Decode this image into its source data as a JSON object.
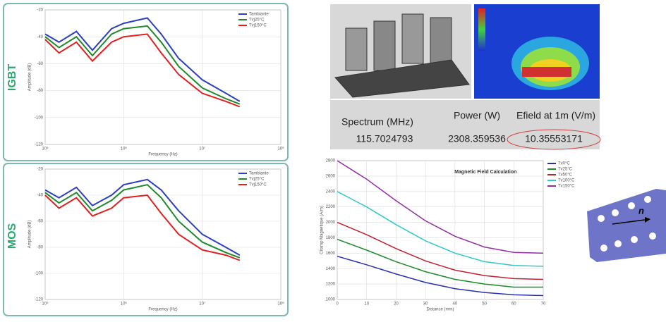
{
  "chart_data": [
    {
      "type": "line",
      "panel_label": "IGBT",
      "xlog": true,
      "xlabel": "Frequency (Hz)",
      "ylabel": "Amplitude (dB)",
      "grid": true,
      "legend": "upper right",
      "x": [
        100000,
        150000,
        250000,
        400000,
        700000,
        1000000,
        2000000,
        3000000,
        5000000,
        10000000,
        20000000,
        30000000
      ],
      "xlim": [
        100000,
        100000000
      ],
      "xticks": [
        {
          "value": 100000,
          "label": "10⁵"
        },
        {
          "value": 1000000,
          "label": "10⁶"
        },
        {
          "value": 10000000,
          "label": "10⁷"
        },
        {
          "value": 100000000,
          "label": "10⁸"
        }
      ],
      "ylim": [
        -120,
        -20
      ],
      "yticks": [
        -20,
        -40,
        -60,
        -80,
        -100,
        -120
      ],
      "series": [
        {
          "name": "Tambiante",
          "color": "#2b3fc0",
          "values": [
            -38,
            -44,
            -36,
            -50,
            -34,
            -30,
            -26,
            -38,
            -56,
            -72,
            -82,
            -88
          ]
        },
        {
          "name": "Tvj25°C",
          "color": "#1e8a2a",
          "values": [
            -40,
            -48,
            -40,
            -54,
            -38,
            -34,
            -32,
            -44,
            -62,
            -78,
            -86,
            -90
          ]
        },
        {
          "name": "Tvj150°C",
          "color": "#e02020",
          "values": [
            -42,
            -52,
            -44,
            -58,
            -44,
            -40,
            -38,
            -52,
            -68,
            -82,
            -88,
            -92
          ]
        }
      ]
    },
    {
      "type": "line",
      "panel_label": "MOS",
      "xlog": true,
      "xlabel": "Frequency (Hz)",
      "ylabel": "Amplitude (dB)",
      "grid": true,
      "legend": "upper right",
      "x": [
        100000,
        150000,
        250000,
        400000,
        700000,
        1000000,
        2000000,
        3000000,
        5000000,
        10000000,
        20000000,
        30000000
      ],
      "xlim": [
        100000,
        100000000
      ],
      "xticks": [
        {
          "value": 100000,
          "label": "10⁵"
        },
        {
          "value": 1000000,
          "label": "10⁶"
        },
        {
          "value": 10000000,
          "label": "10⁷"
        },
        {
          "value": 100000000,
          "label": "10⁸"
        }
      ],
      "ylim": [
        -120,
        -20
      ],
      "yticks": [
        -20,
        -40,
        -60,
        -80,
        -100,
        -120
      ],
      "series": [
        {
          "name": "Tambiante",
          "color": "#2b3fc0",
          "values": [
            -36,
            -42,
            -34,
            -48,
            -40,
            -32,
            -28,
            -36,
            -52,
            -70,
            -80,
            -86
          ]
        },
        {
          "name": "Tvj25°C",
          "color": "#1e8a2a",
          "values": [
            -38,
            -46,
            -38,
            -52,
            -44,
            -36,
            -32,
            -42,
            -60,
            -76,
            -84,
            -88
          ]
        },
        {
          "name": "Tvj150°C",
          "color": "#e02020",
          "values": [
            -40,
            -50,
            -42,
            -56,
            -50,
            -42,
            -40,
            -54,
            -70,
            -82,
            -86,
            -90
          ]
        }
      ]
    },
    {
      "type": "line",
      "title": "Magnetic Field Calculation",
      "xlabel": "Distance (mm)",
      "ylabel": "Champ Magnetique (A/m)",
      "grid": true,
      "legend": "outside right",
      "x": [
        0,
        10,
        20,
        30,
        40,
        50,
        60,
        70
      ],
      "xlim": [
        0,
        70
      ],
      "xticks": [
        0,
        10,
        20,
        30,
        40,
        50,
        60,
        70
      ],
      "ylim": [
        1000,
        2800
      ],
      "yticks": [
        1000,
        1200,
        1400,
        1600,
        1800,
        2000,
        2200,
        2400,
        2600,
        2800
      ],
      "series": [
        {
          "name": "Tv0°C",
          "color": "#2830b0",
          "values": [
            1560,
            1450,
            1330,
            1220,
            1140,
            1090,
            1060,
            1050
          ]
        },
        {
          "name": "Tv25°C",
          "color": "#1e8a2a",
          "values": [
            1780,
            1640,
            1490,
            1360,
            1260,
            1200,
            1160,
            1160
          ]
        },
        {
          "name": "Tv50°C",
          "color": "#c02030",
          "values": [
            2000,
            1840,
            1660,
            1500,
            1380,
            1310,
            1270,
            1260
          ]
        },
        {
          "name": "Tv100°C",
          "color": "#30c8c8",
          "values": [
            2400,
            2200,
            1970,
            1760,
            1600,
            1490,
            1440,
            1430
          ]
        },
        {
          "name": "Tv150°C",
          "color": "#9030a0",
          "values": [
            2800,
            2560,
            2280,
            2020,
            1820,
            1680,
            1610,
            1600
          ]
        }
      ]
    }
  ],
  "table": {
    "headers": [
      "Spectrum (MHz)",
      "Power (W)",
      "Efield at 1m (V/m)"
    ],
    "row": [
      "115.7024793",
      "2308.359536",
      "10.35553171"
    ]
  },
  "plate_label": "n"
}
